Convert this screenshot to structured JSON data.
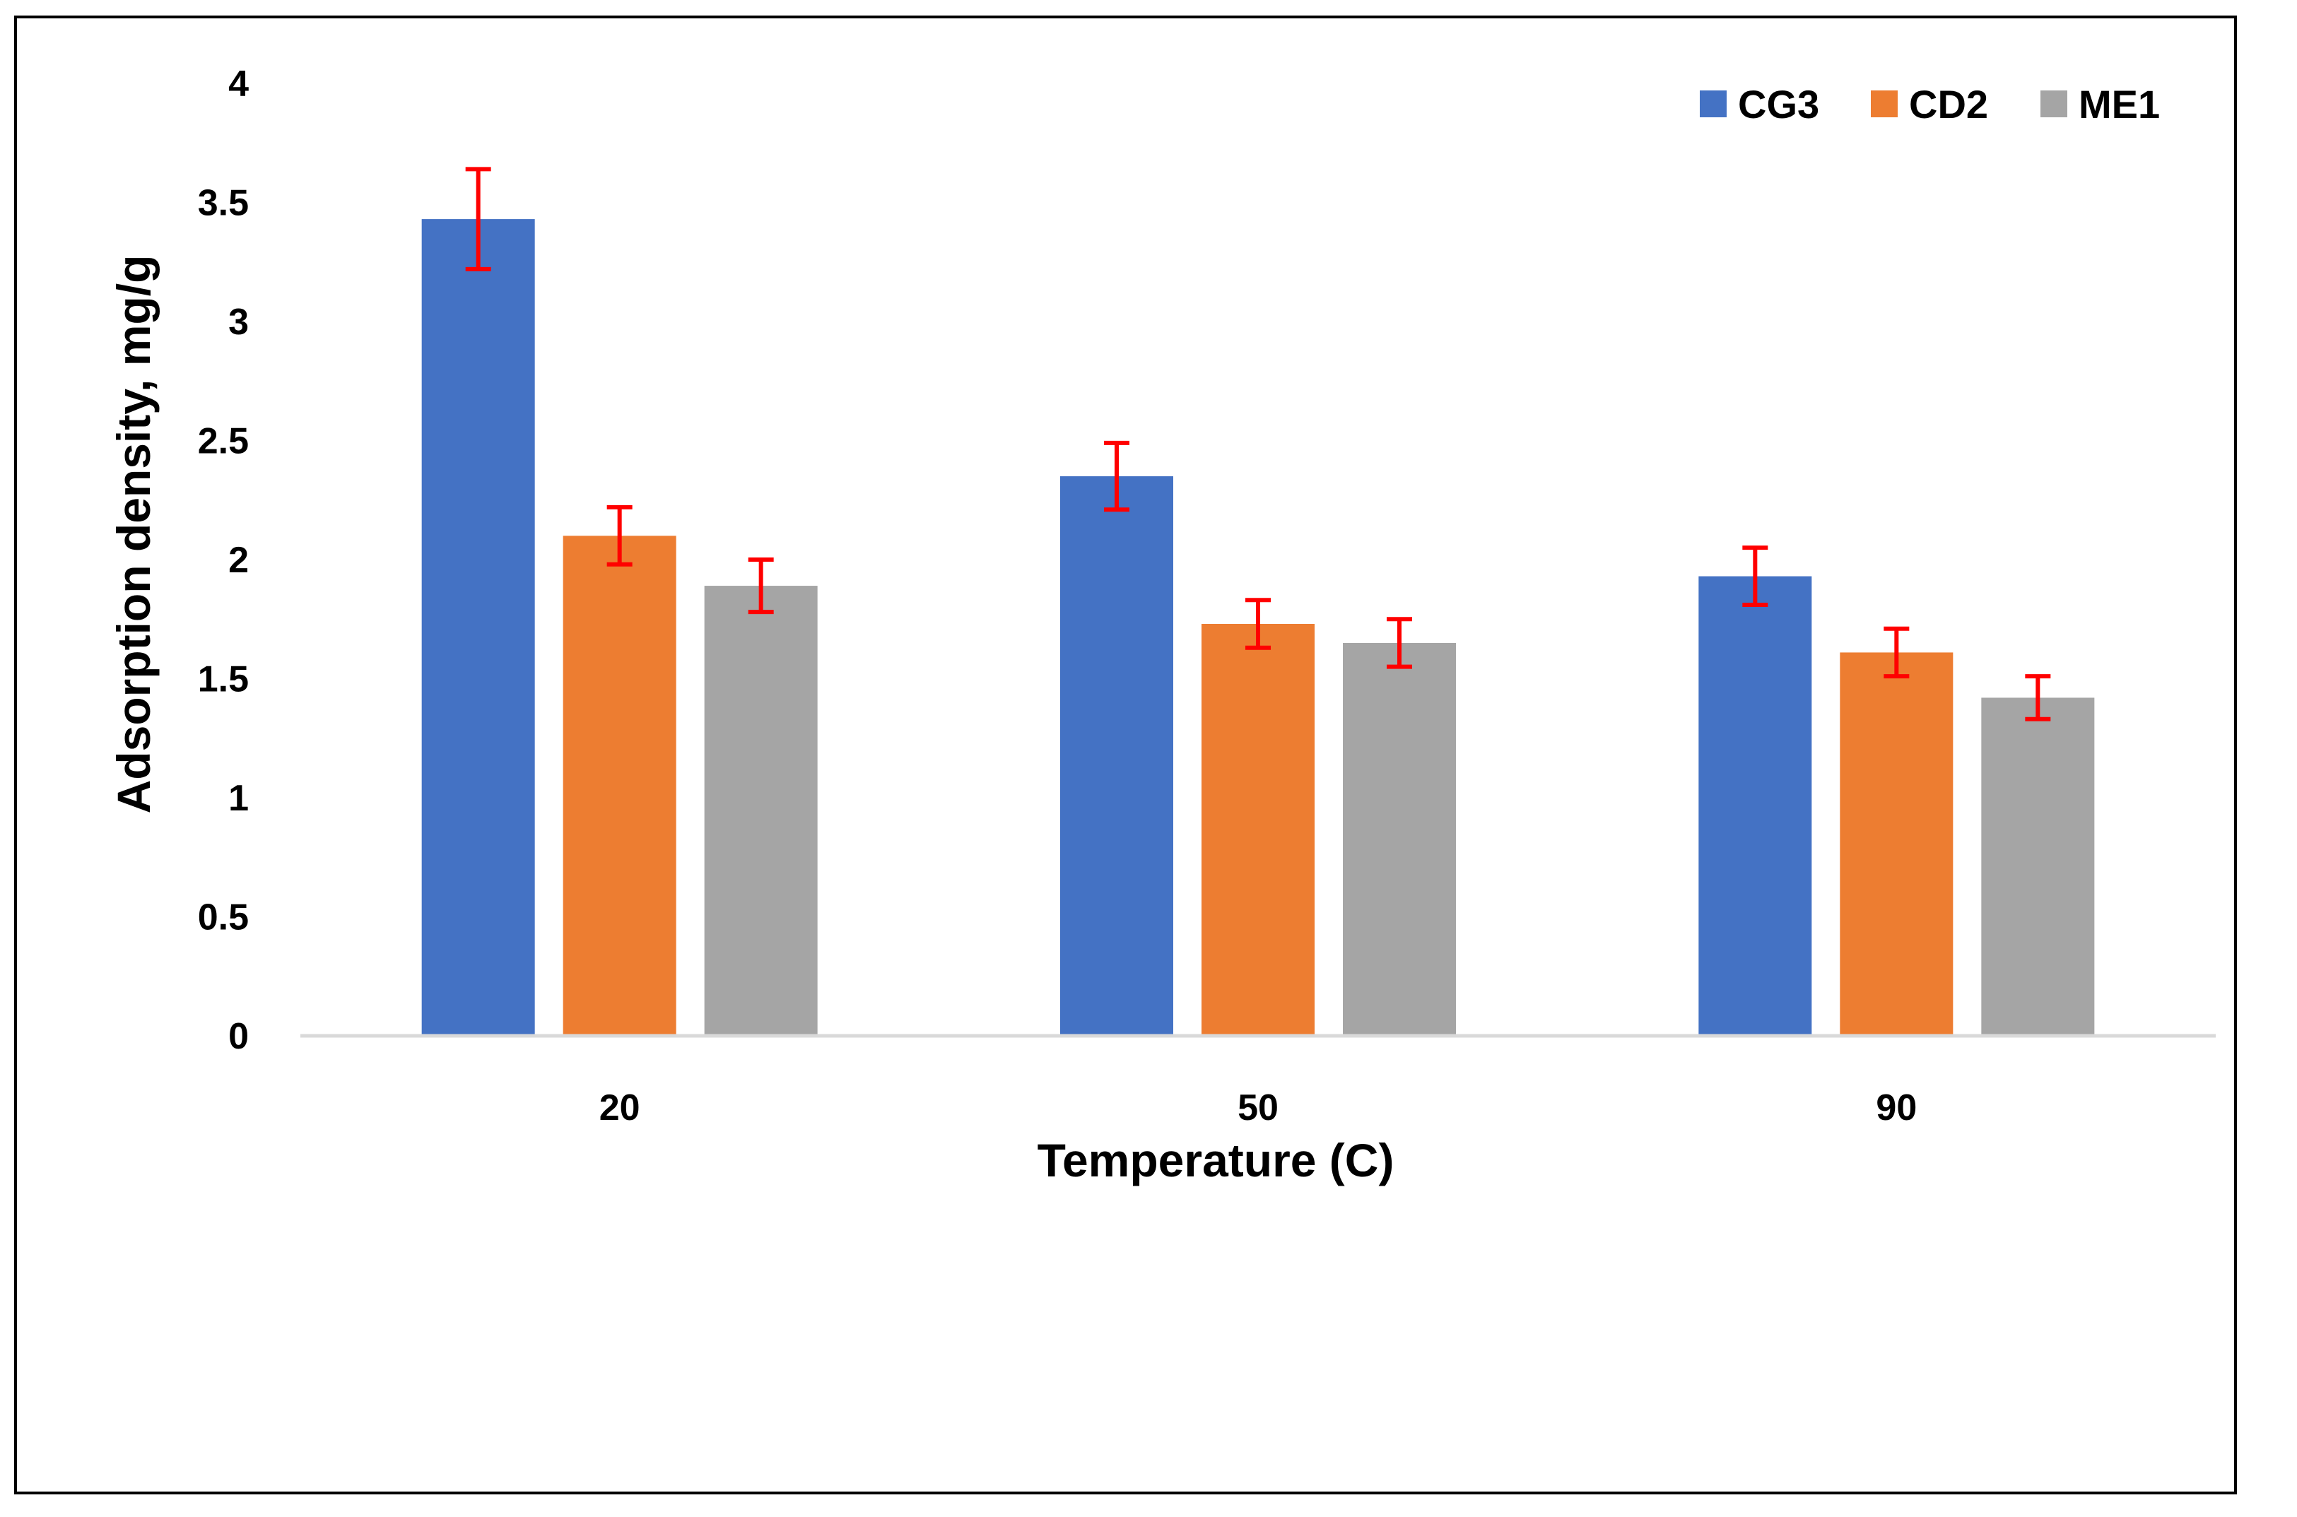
{
  "chart_data": {
    "type": "bar",
    "title": "",
    "xlabel": "Temperature (C)",
    "ylabel": "Adsorption density, mg/g",
    "categories": [
      "20",
      "50",
      "90"
    ],
    "ylim": [
      0,
      4
    ],
    "yticks": [
      "0",
      "0.5",
      "1",
      "1.5",
      "2",
      "2.5",
      "3",
      "3.5",
      "4"
    ],
    "grid": false,
    "legend_position": "top-right",
    "series": [
      {
        "name": "CG3",
        "color": "#4472C4",
        "values": [
          3.43,
          2.35,
          1.93
        ],
        "errors": [
          0.21,
          0.14,
          0.12
        ]
      },
      {
        "name": "CD2",
        "color": "#ED7D31",
        "values": [
          2.1,
          1.73,
          1.61
        ],
        "errors": [
          0.12,
          0.1,
          0.1
        ]
      },
      {
        "name": "ME1",
        "color": "#A5A5A5",
        "values": [
          1.89,
          1.65,
          1.42
        ],
        "errors": [
          0.11,
          0.1,
          0.09
        ]
      }
    ],
    "error_bar_color": "#FF0000",
    "axis_line_color": "#D9D9D9"
  }
}
